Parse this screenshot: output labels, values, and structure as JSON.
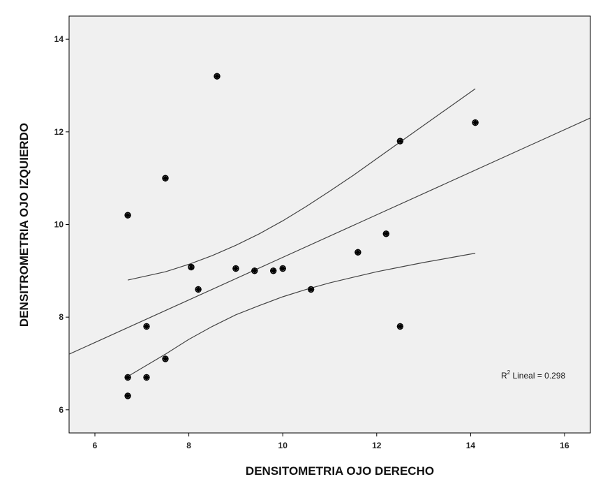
{
  "chart_data": {
    "type": "scatter",
    "xlabel": "DENSITOMETRIA OJO DERECHO",
    "ylabel": "DENSITROMETRIA OJO IZQUIERDO",
    "xlim": [
      5.45,
      16.55
    ],
    "ylim": [
      5.5,
      14.5
    ],
    "xticks": [
      6,
      8,
      10,
      12,
      14,
      16
    ],
    "yticks": [
      6,
      8,
      10,
      12,
      14
    ],
    "tick_labels_x": [
      "6",
      "8",
      "10",
      "12",
      "14",
      "16"
    ],
    "tick_labels_y": [
      "6",
      "8",
      "10",
      "12",
      "14"
    ],
    "grid": false,
    "background": "#f0f0f0",
    "marker_color": "#000000",
    "line_color": "#444444",
    "points": [
      {
        "x": 6.7,
        "y": 10.2
      },
      {
        "x": 6.7,
        "y": 6.7
      },
      {
        "x": 6.7,
        "y": 6.3
      },
      {
        "x": 7.1,
        "y": 7.8
      },
      {
        "x": 7.1,
        "y": 6.7
      },
      {
        "x": 7.5,
        "y": 11.0
      },
      {
        "x": 7.5,
        "y": 7.1
      },
      {
        "x": 8.05,
        "y": 9.08
      },
      {
        "x": 8.2,
        "y": 8.6
      },
      {
        "x": 8.6,
        "y": 13.2
      },
      {
        "x": 9.0,
        "y": 9.05
      },
      {
        "x": 9.4,
        "y": 9.0
      },
      {
        "x": 9.8,
        "y": 9.0
      },
      {
        "x": 10.0,
        "y": 9.05
      },
      {
        "x": 10.6,
        "y": 8.6
      },
      {
        "x": 11.6,
        "y": 9.4
      },
      {
        "x": 12.2,
        "y": 9.8
      },
      {
        "x": 12.5,
        "y": 11.8
      },
      {
        "x": 12.5,
        "y": 7.8
      },
      {
        "x": 14.1,
        "y": 12.2
      }
    ],
    "fit_line": {
      "x": [
        5.45,
        16.55
      ],
      "y": [
        7.2,
        12.3
      ]
    },
    "ci_upper": {
      "x": [
        6.7,
        7.5,
        8.0,
        8.5,
        9.0,
        9.5,
        10.0,
        10.5,
        11.0,
        11.5,
        12.0,
        12.5,
        13.0,
        13.5,
        14.1
      ],
      "y": [
        8.8,
        8.98,
        9.14,
        9.33,
        9.55,
        9.8,
        10.08,
        10.39,
        10.72,
        11.06,
        11.42,
        11.78,
        12.14,
        12.5,
        12.93
      ]
    },
    "ci_lower": {
      "x": [
        6.7,
        7.0,
        7.5,
        8.0,
        8.5,
        9.0,
        9.5,
        10.0,
        10.5,
        11.0,
        11.5,
        12.0,
        12.5,
        13.0,
        13.5,
        14.1
      ],
      "y": [
        6.72,
        6.9,
        7.2,
        7.52,
        7.8,
        8.05,
        8.25,
        8.44,
        8.6,
        8.74,
        8.86,
        8.98,
        9.08,
        9.18,
        9.27,
        9.38
      ]
    },
    "annotation": {
      "base": "R",
      "sup": "2",
      "text": " Lineal = 0.298"
    }
  }
}
